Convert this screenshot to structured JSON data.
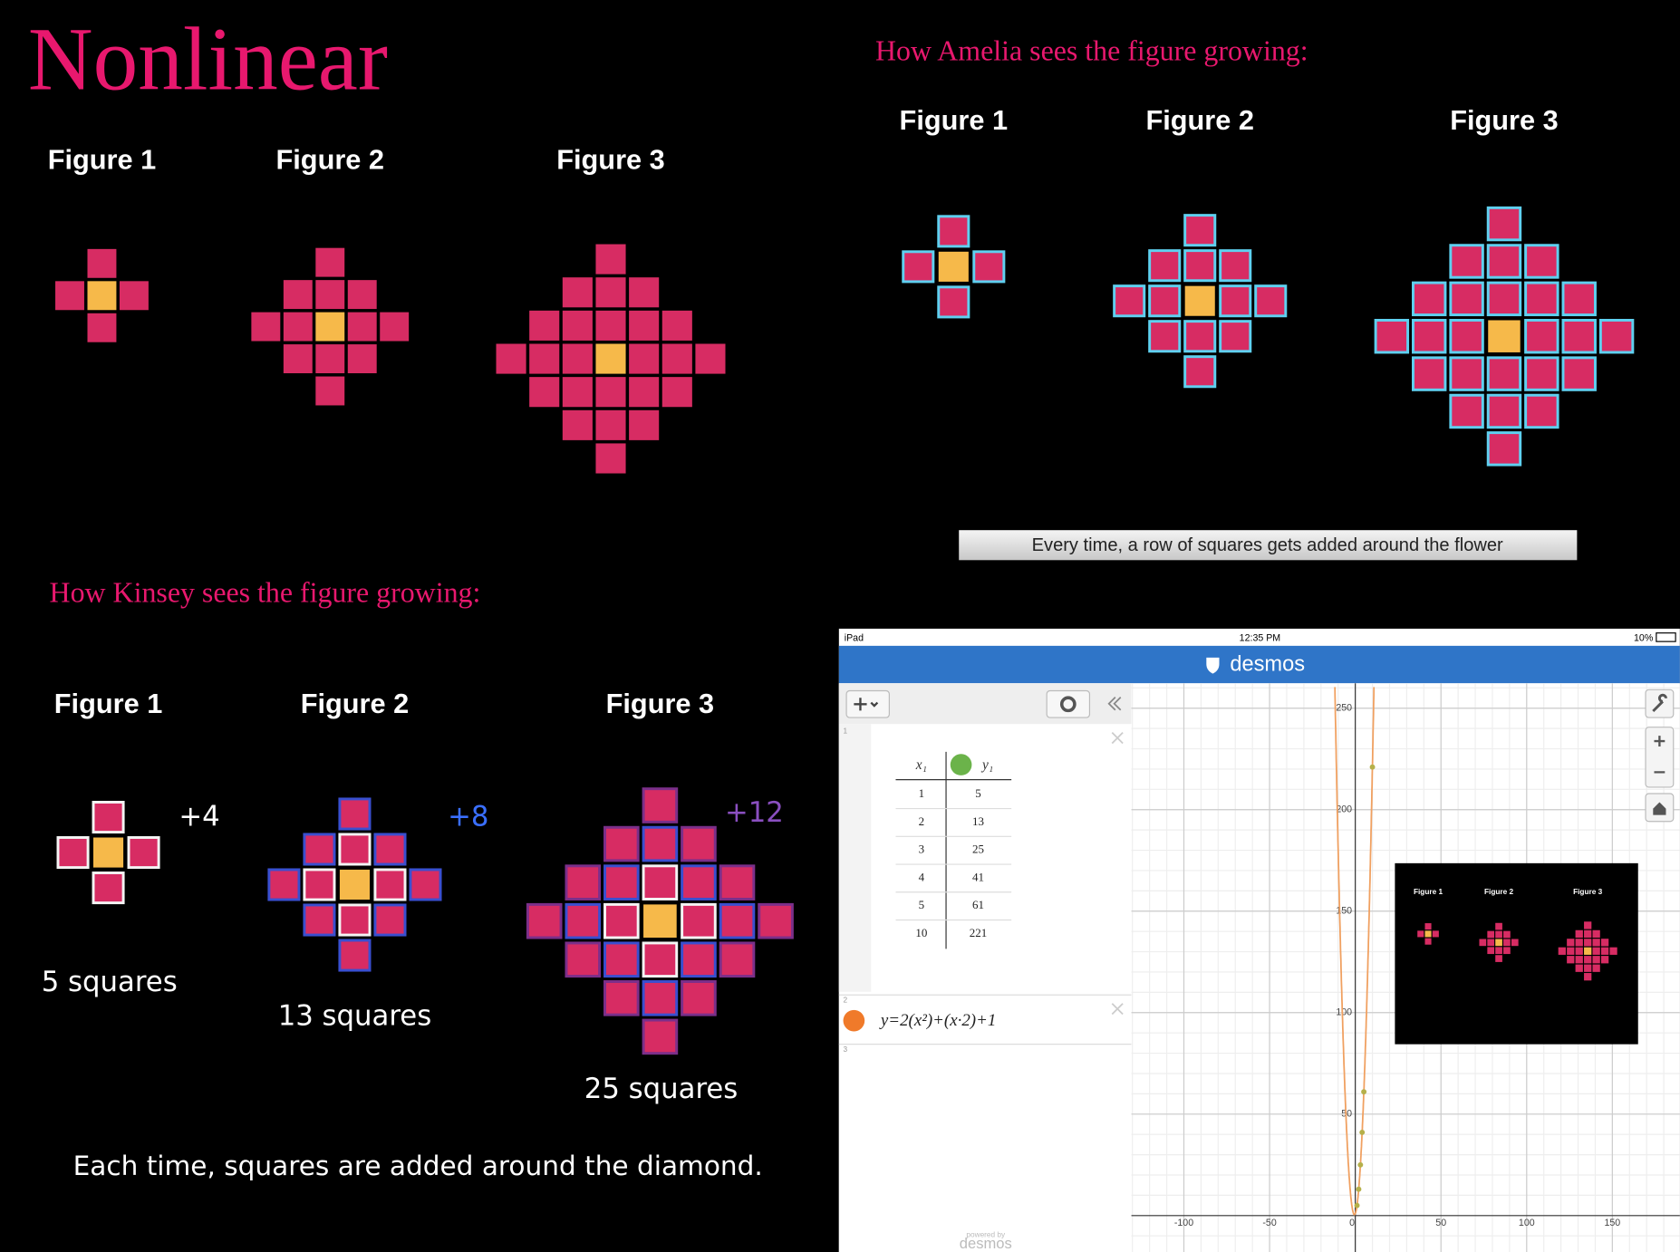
{
  "title": "Nonlinear",
  "top_left": {
    "figures": [
      "Figure 1",
      "Figure 2",
      "Figure 3"
    ]
  },
  "amelia": {
    "heading": "How Amelia sees the figure growing:",
    "figures": [
      "Figure 1",
      "Figure 2",
      "Figure 3"
    ],
    "caption": "Every time, a row of squares gets added around the flower"
  },
  "kinsey": {
    "heading": "How Kinsey sees the figure growing:",
    "figures": [
      "Figure 1",
      "Figure 2",
      "Figure 3"
    ],
    "increments": [
      "+4",
      "+8",
      "+12"
    ],
    "counts": [
      "5 squares",
      "13 squares",
      "25 squares"
    ],
    "caption": "Each time, squares are added around the diamond."
  },
  "ipad": {
    "status": {
      "device": "iPad",
      "time": "12:35 PM",
      "battery": "10%"
    },
    "app": "desmos",
    "list_indices": [
      "1",
      "2",
      "3"
    ],
    "table": {
      "headers": [
        "x₁",
        "y₁"
      ],
      "rows": [
        [
          1,
          5
        ],
        [
          2,
          13
        ],
        [
          3,
          25
        ],
        [
          4,
          41
        ],
        [
          5,
          61
        ],
        [
          10,
          221
        ]
      ]
    },
    "equation": "y=2(x²)+(x·2)+1",
    "graph": {
      "xticks": [
        -100,
        -50,
        0,
        50,
        100,
        150
      ],
      "yticks": [
        50,
        100,
        150,
        200,
        250
      ]
    },
    "powered_by": "powered by",
    "powered_brand": "desmos",
    "inset_figures": [
      "Figure 1",
      "Figure 2",
      "Figure 3"
    ]
  }
}
